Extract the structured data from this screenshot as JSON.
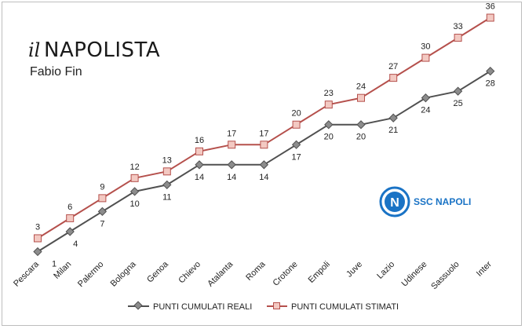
{
  "brand": {
    "prefix": "il",
    "name": "NAPOLISTA",
    "author": "Fabio Fin"
  },
  "club": {
    "name": "SSC NAPOLI",
    "badge_letter": "N",
    "color": "#1a73c5"
  },
  "colors": {
    "reali": "#505050",
    "stimati": "#b5504c",
    "stimati_fill": "#f3c9c2"
  },
  "chart_data": {
    "type": "line",
    "categories": [
      "Pescara",
      "Milan",
      "Palermo",
      "Bologna",
      "Genoa",
      "Chievo",
      "Atalanta",
      "Roma",
      "Crotone",
      "Empoli",
      "Juve",
      "Lazio",
      "Udinese",
      "Sassuolo",
      "Inter"
    ],
    "series": [
      {
        "name": "PUNTI CUMULATI REALI",
        "values": [
          1,
          4,
          7,
          10,
          11,
          14,
          14,
          14,
          17,
          20,
          20,
          21,
          24,
          25,
          28
        ]
      },
      {
        "name": "PUNTI CUMULATI STIMATI",
        "values": [
          3,
          6,
          9,
          12,
          13,
          16,
          17,
          17,
          20,
          23,
          24,
          27,
          30,
          33,
          36
        ]
      }
    ],
    "ylim": [
      0,
      37
    ],
    "legend": "bottom",
    "grid": false
  }
}
